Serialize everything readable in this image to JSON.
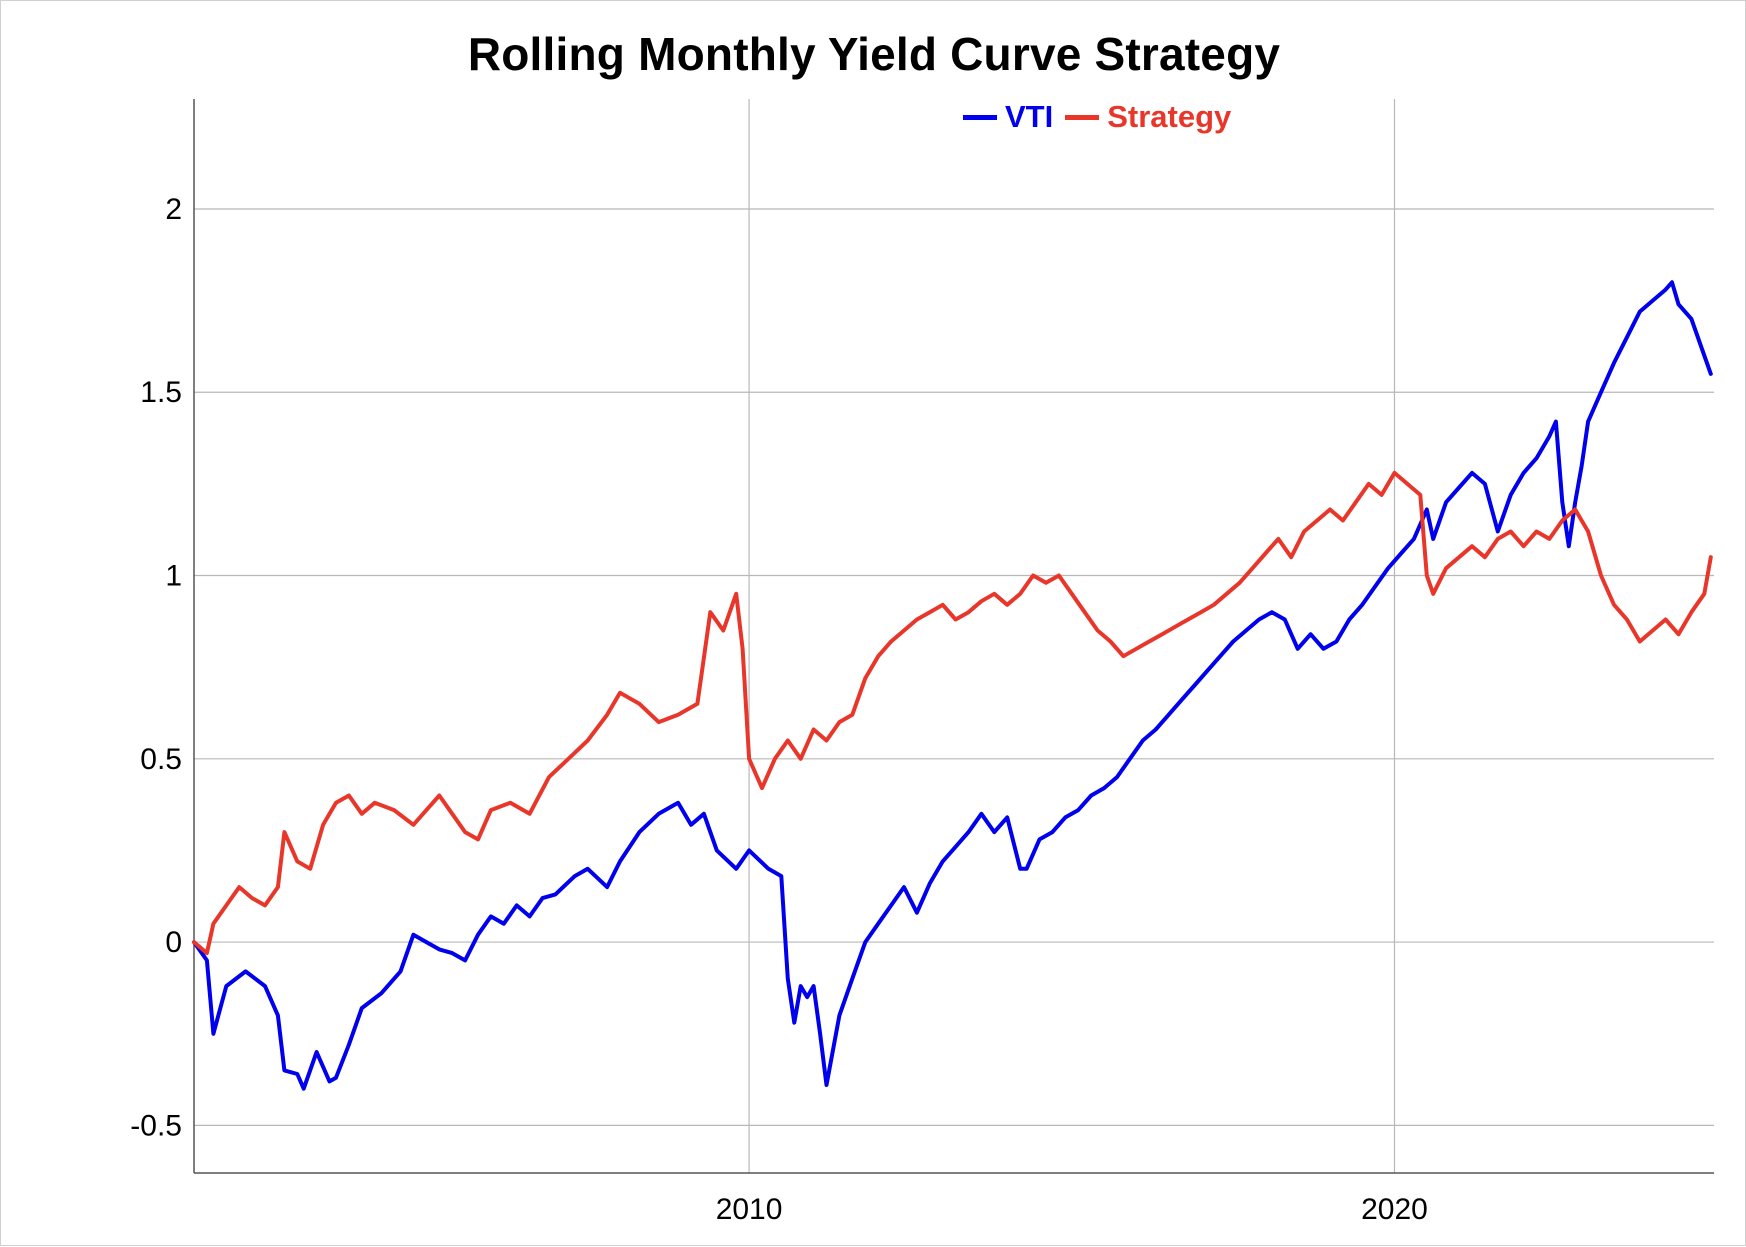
{
  "chart_data": {
    "type": "line",
    "title": "Rolling Monthly Yield Curve Strategy",
    "xlabel": "",
    "ylabel": "",
    "x_range": [
      2001.4,
      2024.95
    ],
    "ylim": [
      -0.63,
      2.3
    ],
    "x_ticks": [
      {
        "value": 2010,
        "label": "2010"
      },
      {
        "value": 2020,
        "label": "2020"
      }
    ],
    "y_ticks": [
      {
        "value": 2,
        "label": "2"
      },
      {
        "value": 1.5,
        "label": "1.5"
      },
      {
        "value": 1,
        "label": "1"
      },
      {
        "value": 0.5,
        "label": "0.5"
      },
      {
        "value": 0,
        "label": "0"
      },
      {
        "value": -0.5,
        "label": "-0.5"
      }
    ],
    "grid": true,
    "legend_position": "top",
    "series": [
      {
        "name": "VTI",
        "color": "#0000ee",
        "points": [
          [
            2001.4,
            0.0
          ],
          [
            2001.6,
            -0.05
          ],
          [
            2001.7,
            -0.25
          ],
          [
            2001.9,
            -0.12
          ],
          [
            2002.2,
            -0.08
          ],
          [
            2002.5,
            -0.12
          ],
          [
            2002.7,
            -0.2
          ],
          [
            2002.8,
            -0.35
          ],
          [
            2003.0,
            -0.36
          ],
          [
            2003.1,
            -0.4
          ],
          [
            2003.3,
            -0.3
          ],
          [
            2003.5,
            -0.38
          ],
          [
            2003.6,
            -0.37
          ],
          [
            2003.8,
            -0.28
          ],
          [
            2004.0,
            -0.18
          ],
          [
            2004.3,
            -0.14
          ],
          [
            2004.6,
            -0.08
          ],
          [
            2004.8,
            0.02
          ],
          [
            2005.0,
            0.0
          ],
          [
            2005.2,
            -0.02
          ],
          [
            2005.4,
            -0.03
          ],
          [
            2005.6,
            -0.05
          ],
          [
            2005.8,
            0.02
          ],
          [
            2006.0,
            0.07
          ],
          [
            2006.2,
            0.05
          ],
          [
            2006.4,
            0.1
          ],
          [
            2006.6,
            0.07
          ],
          [
            2006.8,
            0.12
          ],
          [
            2007.0,
            0.13
          ],
          [
            2007.3,
            0.18
          ],
          [
            2007.5,
            0.2
          ],
          [
            2007.8,
            0.15
          ],
          [
            2008.0,
            0.22
          ],
          [
            2008.3,
            0.3
          ],
          [
            2008.6,
            0.35
          ],
          [
            2008.9,
            0.38
          ],
          [
            2009.1,
            0.32
          ],
          [
            2009.3,
            0.35
          ],
          [
            2009.5,
            0.25
          ],
          [
            2009.8,
            0.2
          ],
          [
            2010.0,
            0.25
          ],
          [
            2010.3,
            0.2
          ],
          [
            2010.5,
            0.18
          ],
          [
            2010.6,
            -0.1
          ],
          [
            2010.7,
            -0.22
          ],
          [
            2010.8,
            -0.12
          ],
          [
            2010.9,
            -0.15
          ],
          [
            2011.0,
            -0.12
          ],
          [
            2011.1,
            -0.25
          ],
          [
            2011.2,
            -0.39
          ],
          [
            2011.4,
            -0.2
          ],
          [
            2011.6,
            -0.1
          ],
          [
            2011.8,
            0.0
          ],
          [
            2012.0,
            0.05
          ],
          [
            2012.2,
            0.1
          ],
          [
            2012.4,
            0.15
          ],
          [
            2012.6,
            0.08
          ],
          [
            2012.8,
            0.16
          ],
          [
            2013.0,
            0.22
          ],
          [
            2013.2,
            0.26
          ],
          [
            2013.4,
            0.3
          ],
          [
            2013.6,
            0.35
          ],
          [
            2013.8,
            0.3
          ],
          [
            2014.0,
            0.34
          ],
          [
            2014.2,
            0.2
          ],
          [
            2014.3,
            0.2
          ],
          [
            2014.5,
            0.28
          ],
          [
            2014.7,
            0.3
          ],
          [
            2014.9,
            0.34
          ],
          [
            2015.1,
            0.36
          ],
          [
            2015.3,
            0.4
          ],
          [
            2015.5,
            0.42
          ],
          [
            2015.7,
            0.45
          ],
          [
            2015.9,
            0.5
          ],
          [
            2016.1,
            0.55
          ],
          [
            2016.3,
            0.58
          ],
          [
            2016.5,
            0.62
          ],
          [
            2016.7,
            0.66
          ],
          [
            2016.9,
            0.7
          ],
          [
            2017.1,
            0.74
          ],
          [
            2017.3,
            0.78
          ],
          [
            2017.5,
            0.82
          ],
          [
            2017.7,
            0.85
          ],
          [
            2017.9,
            0.88
          ],
          [
            2018.1,
            0.9
          ],
          [
            2018.3,
            0.88
          ],
          [
            2018.5,
            0.8
          ],
          [
            2018.7,
            0.84
          ],
          [
            2018.9,
            0.8
          ],
          [
            2019.1,
            0.82
          ],
          [
            2019.3,
            0.88
          ],
          [
            2019.5,
            0.92
          ],
          [
            2019.7,
            0.97
          ],
          [
            2019.9,
            1.02
          ],
          [
            2020.1,
            1.06
          ],
          [
            2020.3,
            1.1
          ],
          [
            2020.5,
            1.18
          ],
          [
            2020.6,
            1.1
          ],
          [
            2020.8,
            1.2
          ],
          [
            2021.0,
            1.24
          ],
          [
            2021.2,
            1.28
          ],
          [
            2021.4,
            1.25
          ],
          [
            2021.6,
            1.12
          ],
          [
            2021.8,
            1.22
          ],
          [
            2022.0,
            1.28
          ],
          [
            2022.2,
            1.32
          ],
          [
            2022.4,
            1.38
          ],
          [
            2022.5,
            1.42
          ],
          [
            2022.6,
            1.2
          ],
          [
            2022.7,
            1.08
          ],
          [
            2022.8,
            1.2
          ],
          [
            2022.9,
            1.3
          ],
          [
            2023.0,
            1.42
          ],
          [
            2023.2,
            1.5
          ],
          [
            2023.4,
            1.58
          ],
          [
            2023.6,
            1.65
          ],
          [
            2023.8,
            1.72
          ],
          [
            2024.0,
            1.75
          ],
          [
            2024.2,
            1.78
          ],
          [
            2024.3,
            1.8
          ],
          [
            2024.4,
            1.74
          ],
          [
            2024.6,
            1.7
          ],
          [
            2024.8,
            1.6
          ],
          [
            2024.9,
            1.55
          ]
        ]
      },
      {
        "name": "Strategy",
        "color": "#e8372a",
        "points": [
          [
            2001.4,
            0.0
          ],
          [
            2001.6,
            -0.03
          ],
          [
            2001.7,
            0.05
          ],
          [
            2001.9,
            0.1
          ],
          [
            2002.1,
            0.15
          ],
          [
            2002.3,
            0.12
          ],
          [
            2002.5,
            0.1
          ],
          [
            2002.7,
            0.15
          ],
          [
            2002.8,
            0.3
          ],
          [
            2003.0,
            0.22
          ],
          [
            2003.2,
            0.2
          ],
          [
            2003.4,
            0.32
          ],
          [
            2003.6,
            0.38
          ],
          [
            2003.8,
            0.4
          ],
          [
            2004.0,
            0.35
          ],
          [
            2004.2,
            0.38
          ],
          [
            2004.5,
            0.36
          ],
          [
            2004.8,
            0.32
          ],
          [
            2005.0,
            0.36
          ],
          [
            2005.2,
            0.4
          ],
          [
            2005.4,
            0.35
          ],
          [
            2005.6,
            0.3
          ],
          [
            2005.8,
            0.28
          ],
          [
            2006.0,
            0.36
          ],
          [
            2006.3,
            0.38
          ],
          [
            2006.6,
            0.35
          ],
          [
            2006.9,
            0.45
          ],
          [
            2007.2,
            0.5
          ],
          [
            2007.5,
            0.55
          ],
          [
            2007.8,
            0.62
          ],
          [
            2008.0,
            0.68
          ],
          [
            2008.3,
            0.65
          ],
          [
            2008.6,
            0.6
          ],
          [
            2008.9,
            0.62
          ],
          [
            2009.2,
            0.65
          ],
          [
            2009.4,
            0.9
          ],
          [
            2009.6,
            0.85
          ],
          [
            2009.8,
            0.95
          ],
          [
            2009.9,
            0.8
          ],
          [
            2010.0,
            0.5
          ],
          [
            2010.2,
            0.42
          ],
          [
            2010.4,
            0.5
          ],
          [
            2010.6,
            0.55
          ],
          [
            2010.8,
            0.5
          ],
          [
            2011.0,
            0.58
          ],
          [
            2011.2,
            0.55
          ],
          [
            2011.4,
            0.6
          ],
          [
            2011.6,
            0.62
          ],
          [
            2011.8,
            0.72
          ],
          [
            2012.0,
            0.78
          ],
          [
            2012.2,
            0.82
          ],
          [
            2012.4,
            0.85
          ],
          [
            2012.6,
            0.88
          ],
          [
            2012.8,
            0.9
          ],
          [
            2013.0,
            0.92
          ],
          [
            2013.2,
            0.88
          ],
          [
            2013.4,
            0.9
          ],
          [
            2013.6,
            0.93
          ],
          [
            2013.8,
            0.95
          ],
          [
            2014.0,
            0.92
          ],
          [
            2014.2,
            0.95
          ],
          [
            2014.4,
            1.0
          ],
          [
            2014.6,
            0.98
          ],
          [
            2014.8,
            1.0
          ],
          [
            2015.0,
            0.95
          ],
          [
            2015.2,
            0.9
          ],
          [
            2015.4,
            0.85
          ],
          [
            2015.6,
            0.82
          ],
          [
            2015.8,
            0.78
          ],
          [
            2016.0,
            0.8
          ],
          [
            2016.2,
            0.82
          ],
          [
            2016.4,
            0.84
          ],
          [
            2016.6,
            0.86
          ],
          [
            2016.8,
            0.88
          ],
          [
            2017.0,
            0.9
          ],
          [
            2017.2,
            0.92
          ],
          [
            2017.4,
            0.95
          ],
          [
            2017.6,
            0.98
          ],
          [
            2017.8,
            1.02
          ],
          [
            2018.0,
            1.06
          ],
          [
            2018.2,
            1.1
          ],
          [
            2018.4,
            1.05
          ],
          [
            2018.6,
            1.12
          ],
          [
            2018.8,
            1.15
          ],
          [
            2019.0,
            1.18
          ],
          [
            2019.2,
            1.15
          ],
          [
            2019.4,
            1.2
          ],
          [
            2019.6,
            1.25
          ],
          [
            2019.8,
            1.22
          ],
          [
            2020.0,
            1.28
          ],
          [
            2020.2,
            1.25
          ],
          [
            2020.4,
            1.22
          ],
          [
            2020.5,
            1.0
          ],
          [
            2020.6,
            0.95
          ],
          [
            2020.8,
            1.02
          ],
          [
            2021.0,
            1.05
          ],
          [
            2021.2,
            1.08
          ],
          [
            2021.4,
            1.05
          ],
          [
            2021.6,
            1.1
          ],
          [
            2021.8,
            1.12
          ],
          [
            2022.0,
            1.08
          ],
          [
            2022.2,
            1.12
          ],
          [
            2022.4,
            1.1
          ],
          [
            2022.6,
            1.15
          ],
          [
            2022.8,
            1.18
          ],
          [
            2023.0,
            1.12
          ],
          [
            2023.2,
            1.0
          ],
          [
            2023.4,
            0.92
          ],
          [
            2023.6,
            0.88
          ],
          [
            2023.8,
            0.82
          ],
          [
            2024.0,
            0.85
          ],
          [
            2024.2,
            0.88
          ],
          [
            2024.4,
            0.84
          ],
          [
            2024.6,
            0.9
          ],
          [
            2024.8,
            0.95
          ],
          [
            2024.9,
            1.05
          ]
        ]
      }
    ]
  }
}
